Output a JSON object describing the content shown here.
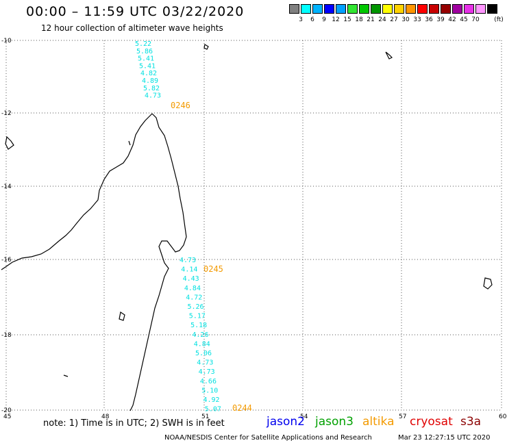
{
  "header": {
    "title": "00:00 – 11:59 UTC 03/22/2020",
    "subtitle": "12 hour collection of altimeter wave heights"
  },
  "colorbar": {
    "unit": "(ft)",
    "swatches": [
      {
        "color": "#808080",
        "label": ""
      },
      {
        "color": "#00ffff",
        "label": "3"
      },
      {
        "color": "#00b4ff",
        "label": "6"
      },
      {
        "color": "#0000ff",
        "label": "9"
      },
      {
        "color": "#00a0ff",
        "label": "12"
      },
      {
        "color": "#32e632",
        "label": "15"
      },
      {
        "color": "#00c800",
        "label": "18"
      },
      {
        "color": "#009600",
        "label": "21"
      },
      {
        "color": "#ffff00",
        "label": "24"
      },
      {
        "color": "#ffd200",
        "label": "27"
      },
      {
        "color": "#ff9600",
        "label": "30"
      },
      {
        "color": "#ff0000",
        "label": "33"
      },
      {
        "color": "#c80000",
        "label": "36"
      },
      {
        "color": "#960000",
        "label": "39"
      },
      {
        "color": "#a000a0",
        "label": "42"
      },
      {
        "color": "#e632e6",
        "label": "45"
      },
      {
        "color": "#ff96ff",
        "label": "70"
      },
      {
        "color": "#000000",
        "label": ""
      }
    ]
  },
  "map": {
    "lat_labels": [
      "-10",
      "-12",
      "-14",
      "-16",
      "-18",
      "-20"
    ],
    "lon_labels": [
      "45",
      "48",
      "51",
      "54",
      "57",
      "60"
    ],
    "gridline_style": "dotted",
    "track_color": "#00e0e0",
    "pass_color": "#f39a00",
    "tracks": [
      {
        "pass": "0246",
        "values": [
          "5.22",
          "5.86",
          "5.41",
          "5.41",
          "4.82",
          "4.89",
          "5.82",
          "4.73"
        ]
      },
      {
        "pass": "0245",
        "values": [
          "4.73",
          "4.14",
          "4.43",
          "4.84",
          "4.72",
          "5.26",
          "5.17",
          "5.18",
          "4.26",
          "4.84",
          "5.06",
          "4.73",
          "4.73",
          "4.66",
          "5.10",
          "4.92",
          "5.07"
        ]
      },
      {
        "pass": "0244",
        "values": []
      }
    ]
  },
  "note": "note: 1) Time is in UTC; 2) SWH is in feet",
  "satellites": [
    {
      "name": "jason2",
      "color": "#0000ee"
    },
    {
      "name": "jason3",
      "color": "#00a000"
    },
    {
      "name": "altika",
      "color": "#f39a00"
    },
    {
      "name": "cryosat",
      "color": "#e00000"
    },
    {
      "name": "s3a",
      "color": "#8b0000"
    }
  ],
  "footer": {
    "credit": "NOAA/NESDIS Center for Satellite Applications and Research",
    "timestamp": "Mar 23 12:27:15 UTC 2020"
  }
}
